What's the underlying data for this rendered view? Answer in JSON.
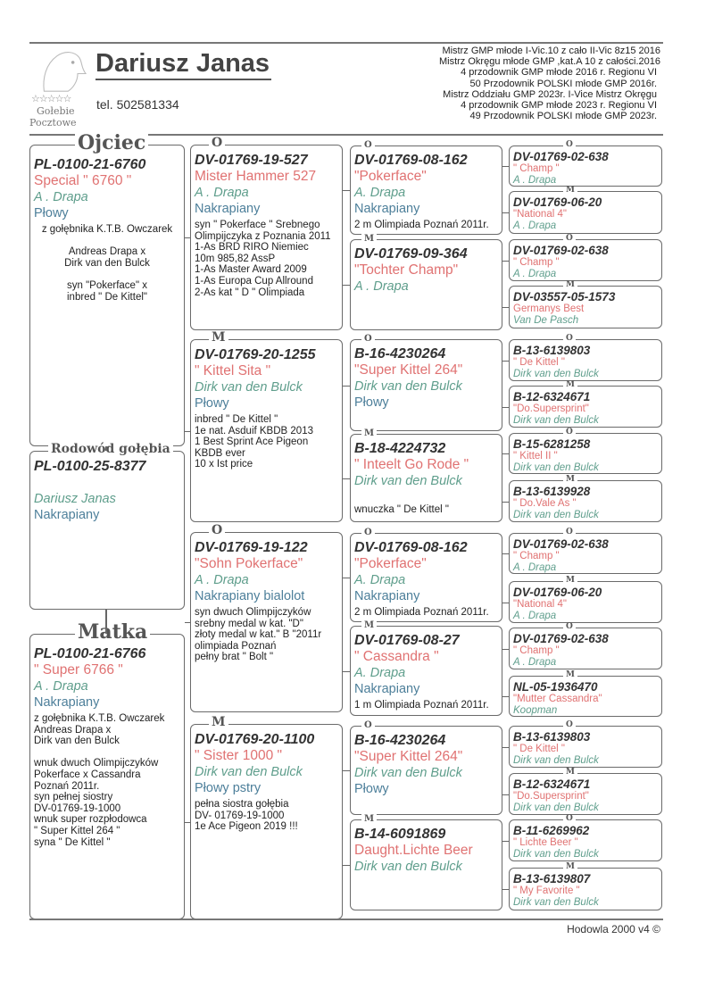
{
  "header": {
    "breeder_name": "Dariusz Janas",
    "phone": "tel. 502581334",
    "logo_text": [
      "Gołebie",
      "Pocztowe"
    ],
    "logo_stars": "☆☆☆☆☆",
    "achievements": [
      "Mistrz GMP młode  I-Vic.10 z cało II-Vic 8z15 2016",
      "Mistrz Okręgu młode GMP ,kat.A 10 z całości.2016",
      "4 przodownik GMP młode 2016 r. Regionu VI",
      "50 Przodownik POLSKI młode GMP 2016r.",
      "Mistrz Oddziału GMP 2023r.  I-Vice Mistrz Okręgu",
      "4 przodownik GMP młode 2023 r.  Regionu VI",
      "49 Przodownik POLSKI młode  GMP 2023r."
    ]
  },
  "subject": {
    "label": "Rodowód gołębia",
    "ring": "PL-0100-25-8377",
    "breeder": "Dariusz Janas",
    "color": "Nakrapiany"
  },
  "father": {
    "label": "Ojciec",
    "ring": "PL-0100-21-6760",
    "name": "Special \" 6760 \"",
    "breeder": "A . Drapa",
    "color": "Płowy",
    "notes": [
      "z gołębnika K.T.B. Owczarek",
      "",
      "Andreas Drapa   x",
      "Dirk van den Bulck",
      "",
      "syn \"Pokerface\" x",
      "inbred \" De Kittel\""
    ]
  },
  "mother": {
    "label": "Matka",
    "ring": "PL-0100-21-6766",
    "name": "\" Super 6766 \"",
    "breeder": "A . Drapa",
    "color": "Nakrapiany",
    "notes": [
      "z gołębnika K.T.B. Owczarek",
      "Andreas Drapa x",
      "Dirk van den Bulck",
      "",
      "wnuk dwuch Olimpijczyków",
      "Pokerface x Cassandra",
      "Poznań 2011r.",
      "syn pełnej siostry",
      "DV-01769-19-1000",
      "wnuk super rozpłodowca",
      "\" Super Kittel 264 \"",
      "syna \" De Kittel \""
    ]
  },
  "grandparents": [
    {
      "sex": "O",
      "ring": "DV-01769-19-527",
      "name": "Mister Hammer 527",
      "breeder": "A . Drapa",
      "color": "Nakrapiany",
      "notes": [
        "syn \" Pokerface \" Srebnego",
        "Olimpijczyka z Poznania 2011",
        "1-As BRD RIRO Niemiec",
        "10m 985,82 AssP",
        "1-As Master Award 2009",
        "1-As Europa Cup Allround",
        "2-As kat \" D \" Olimpiada"
      ]
    },
    {
      "sex": "M",
      "ring": "DV-01769-20-1255",
      "name": "\" Kittel Sita \"",
      "breeder": "Dirk van den Bulck",
      "color": "Płowy",
      "notes": [
        "inbred  \" De Kittel \"",
        "1e nat.  Asduif  KBDB  2013",
        "1 Best Sprint Ace Pigeon",
        "KBDB ever",
        "10 x  Ist  price"
      ]
    },
    {
      "sex": "O",
      "ring": "DV-01769-19-122",
      "name": "\"Sohn Pokerface\"",
      "breeder": "A . Drapa",
      "color": "Nakrapiany bialolot",
      "notes": [
        "syn dwuch Olimpijczyków",
        "srebny medal w kat. \"D\"",
        "złoty medal w kat.\" B \"2011r",
        "olimpiada Poznań",
        "pełny brat \" Bolt \""
      ]
    },
    {
      "sex": "M",
      "ring": "DV-01769-20-1100",
      "name": "\" Sister 1000 \"",
      "breeder": "Dirk van den Bulck",
      "color": "Płowy pstry",
      "notes": [
        "pełna siostra gołębia",
        "DV- 01769-19-1000",
        "1e Ace Pigeon 2019 !!!"
      ]
    }
  ],
  "great_grandparents": [
    {
      "sex": "O",
      "ring": "DV-01769-08-162",
      "name": "\"Pokerface\"",
      "breeder": "A. Drapa",
      "color": "Nakrapiany",
      "notes": [
        "2 m Olimpiada Poznań 2011r."
      ]
    },
    {
      "sex": "M",
      "ring": "DV-01769-09-364",
      "name": "\"Tochter Champ\"",
      "breeder": "A . Drapa",
      "color": "",
      "notes": []
    },
    {
      "sex": "O",
      "ring": "B-16-4230264",
      "name": "\"Super Kittel 264\"",
      "breeder": "Dirk van den Bulck",
      "color": "Płowy",
      "notes": []
    },
    {
      "sex": "M",
      "ring": "B-18-4224732",
      "name": "\" Inteelt Go Rode \"",
      "breeder": "Dirk van den Bulck",
      "color": "",
      "notes": [
        "wnuczka \" De Kittel \""
      ]
    },
    {
      "sex": "O",
      "ring": "DV-01769-08-162",
      "name": "\"Pokerface\"",
      "breeder": "A. Drapa",
      "color": "Nakrapiany",
      "notes": [
        "2 m Olimpiada Poznań 2011r."
      ]
    },
    {
      "sex": "M",
      "ring": "DV-01769-08-27",
      "name": "\" Cassandra \"",
      "breeder": "A. Drapa",
      "color": "Nakrapiany",
      "notes": [
        "1 m Olimpiada Poznań 2011r."
      ]
    },
    {
      "sex": "O",
      "ring": "B-16-4230264",
      "name": "\"Super Kittel 264\"",
      "breeder": "Dirk van den Bulck",
      "color": "Płowy",
      "notes": []
    },
    {
      "sex": "M",
      "ring": "B-14-6091869",
      "name": "Daught.Lichte Beer",
      "breeder": "Dirk van den Bulck",
      "color": "",
      "notes": []
    }
  ],
  "great_great_grandparents": [
    {
      "sex": "O",
      "ring": "DV-01769-02-638",
      "name": "\" Champ \"",
      "breeder": "A . Drapa"
    },
    {
      "sex": "M",
      "ring": "DV-01769-06-20",
      "name": "\"National 4\"",
      "breeder": "A . Drapa"
    },
    {
      "sex": "O",
      "ring": "DV-01769-02-638",
      "name": "\" Champ \"",
      "breeder": "A . Drapa"
    },
    {
      "sex": "M",
      "ring": "DV-03557-05-1573",
      "name": "Germanys Best",
      "breeder": "Van De Pasch"
    },
    {
      "sex": "O",
      "ring": "B-13-6139803",
      "name": "\" De Kittel \"",
      "breeder": "Dirk van den Bulck"
    },
    {
      "sex": "M",
      "ring": "B-12-6324671",
      "name": "\"Do.Supersprint\"",
      "breeder": "Dirk van den Bulck"
    },
    {
      "sex": "O",
      "ring": "B-15-6281258",
      "name": "\" Kittel II \"",
      "breeder": "Dirk van den Bulck"
    },
    {
      "sex": "M",
      "ring": "B-13-6139928",
      "name": "\" Do.Vale As \"",
      "breeder": "Dirk van den Bulck"
    },
    {
      "sex": "O",
      "ring": "DV-01769-02-638",
      "name": "\" Champ \"",
      "breeder": "A . Drapa"
    },
    {
      "sex": "M",
      "ring": "DV-01769-06-20",
      "name": "\"National 4\"",
      "breeder": "A . Drapa"
    },
    {
      "sex": "O",
      "ring": "DV-01769-02-638",
      "name": "\" Champ \"",
      "breeder": "A . Drapa"
    },
    {
      "sex": "M",
      "ring": "NL-05-1936470",
      "name": "\"Mutter Cassandra\"",
      "breeder": "Koopman"
    },
    {
      "sex": "O",
      "ring": "B-13-6139803",
      "name": "\" De Kittel \"",
      "breeder": "Dirk van den Bulck"
    },
    {
      "sex": "M",
      "ring": "B-12-6324671",
      "name": "\"Do.Supersprint\"",
      "breeder": "Dirk van den Bulck"
    },
    {
      "sex": "O",
      "ring": "B-11-6269962",
      "name": "\" Lichte Beer \"",
      "breeder": "Dirk van den Bulck"
    },
    {
      "sex": "M",
      "ring": "B-13-6139807",
      "name": "\" My Favorite \"",
      "breeder": "Dirk van den Bulck"
    }
  ],
  "footer": {
    "credit": "Hodowla 2000 v4 ©"
  },
  "colors": {
    "name_red": "#e07272",
    "breeder_teal": "#5f9e8c",
    "color_blue": "#4d7f9a",
    "border_gray": "#6a6a6a"
  }
}
